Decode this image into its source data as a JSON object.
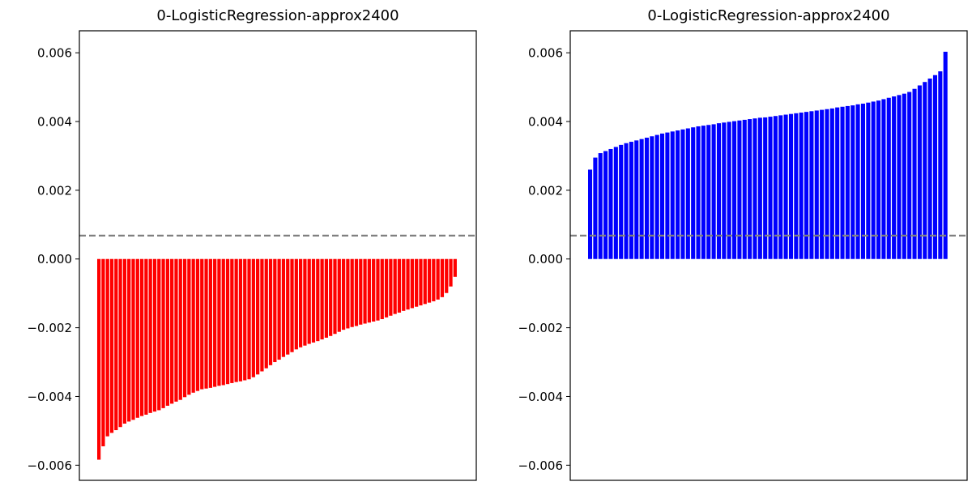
{
  "chart_data": [
    {
      "type": "bar",
      "title": "0-LogisticRegression-approx2400",
      "xlabel": "",
      "ylabel": "",
      "ylim": [
        -0.00644,
        0.00664
      ],
      "yticks": [
        -0.006,
        -0.004,
        -0.002,
        0.0,
        0.002,
        0.004,
        0.006
      ],
      "ytick_labels": [
        "−0.006",
        "−0.004",
        "−0.002",
        "0.000",
        "0.002",
        "0.004",
        "0.006"
      ],
      "x_ticks_visible": false,
      "grid": false,
      "bar_color": "#ff0000",
      "reference_line": {
        "y": 0.00068,
        "style": "dashed",
        "color": "#808080"
      },
      "values": [
        -0.00584,
        -0.00545,
        -0.00516,
        -0.00506,
        -0.00498,
        -0.00489,
        -0.00479,
        -0.00473,
        -0.00468,
        -0.00462,
        -0.00457,
        -0.00453,
        -0.00448,
        -0.00444,
        -0.0044,
        -0.00434,
        -0.00427,
        -0.00421,
        -0.00415,
        -0.0041,
        -0.00402,
        -0.00395,
        -0.00389,
        -0.00384,
        -0.00379,
        -0.00377,
        -0.00375,
        -0.00372,
        -0.00369,
        -0.00367,
        -0.00364,
        -0.00361,
        -0.00358,
        -0.00356,
        -0.00353,
        -0.0035,
        -0.00344,
        -0.00336,
        -0.00327,
        -0.00318,
        -0.00309,
        -0.003,
        -0.00293,
        -0.00285,
        -0.00278,
        -0.00271,
        -0.00263,
        -0.00257,
        -0.00252,
        -0.00247,
        -0.00243,
        -0.00239,
        -0.00234,
        -0.00229,
        -0.00224,
        -0.00218,
        -0.00212,
        -0.00206,
        -0.00202,
        -0.00198,
        -0.00195,
        -0.00191,
        -0.00188,
        -0.00185,
        -0.00182,
        -0.00179,
        -0.00175,
        -0.0017,
        -0.00165,
        -0.0016,
        -0.00156,
        -0.00151,
        -0.00147,
        -0.00143,
        -0.00139,
        -0.00135,
        -0.00131,
        -0.00127,
        -0.00123,
        -0.00118,
        -0.00111,
        -0.00099,
        -0.0008,
        -0.00052
      ]
    },
    {
      "type": "bar",
      "title": "0-LogisticRegression-approx2400",
      "xlabel": "",
      "ylabel": "",
      "ylim": [
        -0.00644,
        0.00664
      ],
      "yticks": [
        -0.006,
        -0.004,
        -0.002,
        0.0,
        0.002,
        0.004,
        0.006
      ],
      "ytick_labels": [
        "−0.006",
        "−0.004",
        "−0.002",
        "0.000",
        "0.002",
        "0.004",
        "0.006"
      ],
      "x_ticks_visible": false,
      "grid": false,
      "bar_color": "#0000ff",
      "reference_line": {
        "y": 0.00068,
        "style": "dashed",
        "color": "#808080"
      },
      "values": [
        0.0026,
        0.00295,
        0.00308,
        0.00314,
        0.0032,
        0.00326,
        0.00332,
        0.00337,
        0.00341,
        0.00345,
        0.00349,
        0.00353,
        0.00357,
        0.00361,
        0.00365,
        0.00368,
        0.00371,
        0.00374,
        0.00377,
        0.0038,
        0.00383,
        0.00386,
        0.00388,
        0.0039,
        0.00392,
        0.00395,
        0.00397,
        0.00399,
        0.00401,
        0.00403,
        0.00405,
        0.00407,
        0.00409,
        0.00411,
        0.00412,
        0.00414,
        0.00416,
        0.00418,
        0.0042,
        0.00422,
        0.00424,
        0.00426,
        0.00428,
        0.0043,
        0.00432,
        0.00434,
        0.00436,
        0.00438,
        0.00441,
        0.00443,
        0.00445,
        0.00447,
        0.0045,
        0.00452,
        0.00455,
        0.00458,
        0.00461,
        0.00465,
        0.00469,
        0.00473,
        0.00477,
        0.00481,
        0.00486,
        0.00495,
        0.00505,
        0.00515,
        0.00525,
        0.00535,
        0.00546,
        0.00603
      ]
    }
  ]
}
